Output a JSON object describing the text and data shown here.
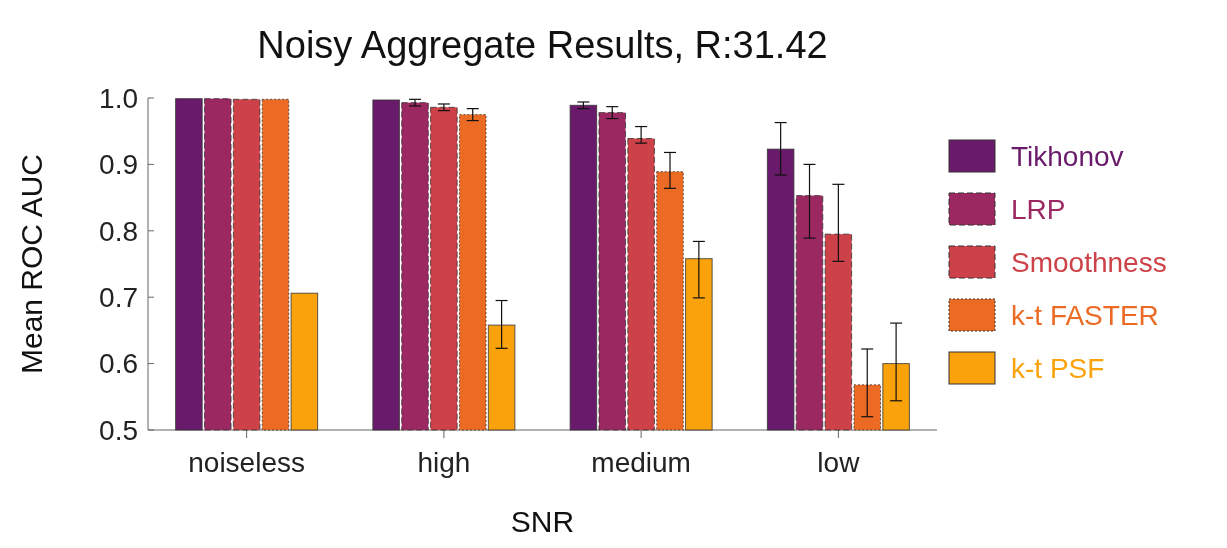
{
  "chart_data": {
    "type": "bar",
    "title": "Noisy Aggregate Results, R:31.42",
    "xlabel": "SNR",
    "ylabel": "Mean ROC AUC",
    "categories": [
      "noiseless",
      "high",
      "medium",
      "low"
    ],
    "ylim": [
      0.5,
      1.0
    ],
    "yticks": [
      0.5,
      0.6,
      0.7,
      0.8,
      0.9,
      {
        "value": 1.0,
        "label": "1.0"
      }
    ],
    "grid": false,
    "legend": "right",
    "series": [
      {
        "name": "Tikhonov",
        "color": "#6a1a6a",
        "line_style": "solid",
        "values": [
          0.999,
          0.997,
          0.989,
          0.923
        ],
        "errors": [
          null,
          null,
          [
            0.984,
            0.994
          ],
          [
            0.884,
            0.963
          ]
        ]
      },
      {
        "name": "LRP",
        "color": "#9b2861",
        "line_style": "dashed",
        "values": [
          0.999,
          0.993,
          0.978,
          0.853
        ],
        "errors": [
          null,
          [
            0.988,
            0.998
          ],
          [
            0.969,
            0.987
          ],
          [
            0.789,
            0.9
          ]
        ]
      },
      {
        "name": "Smoothness",
        "color": "#cc4248",
        "line_style": "dashed",
        "values": [
          0.998,
          0.986,
          0.939,
          0.795
        ],
        "errors": [
          null,
          [
            0.981,
            0.991
          ],
          [
            0.932,
            0.957
          ],
          [
            0.754,
            0.87
          ]
        ]
      },
      {
        "name": "k-t FASTER",
        "color": "#ec6b24",
        "line_style": "dotted",
        "values": [
          0.998,
          0.975,
          0.889,
          0.568
        ],
        "errors": [
          null,
          [
            0.966,
            0.984
          ],
          [
            0.864,
            0.918
          ],
          [
            0.52,
            0.622
          ]
        ]
      },
      {
        "name": "k-t PSF",
        "color": "#f9a20c",
        "line_style": "solid",
        "values": [
          0.706,
          0.658,
          0.758,
          0.6
        ],
        "errors": [
          null,
          [
            0.623,
            0.695
          ],
          [
            0.699,
            0.784
          ],
          [
            0.544,
            0.661
          ]
        ]
      }
    ]
  }
}
